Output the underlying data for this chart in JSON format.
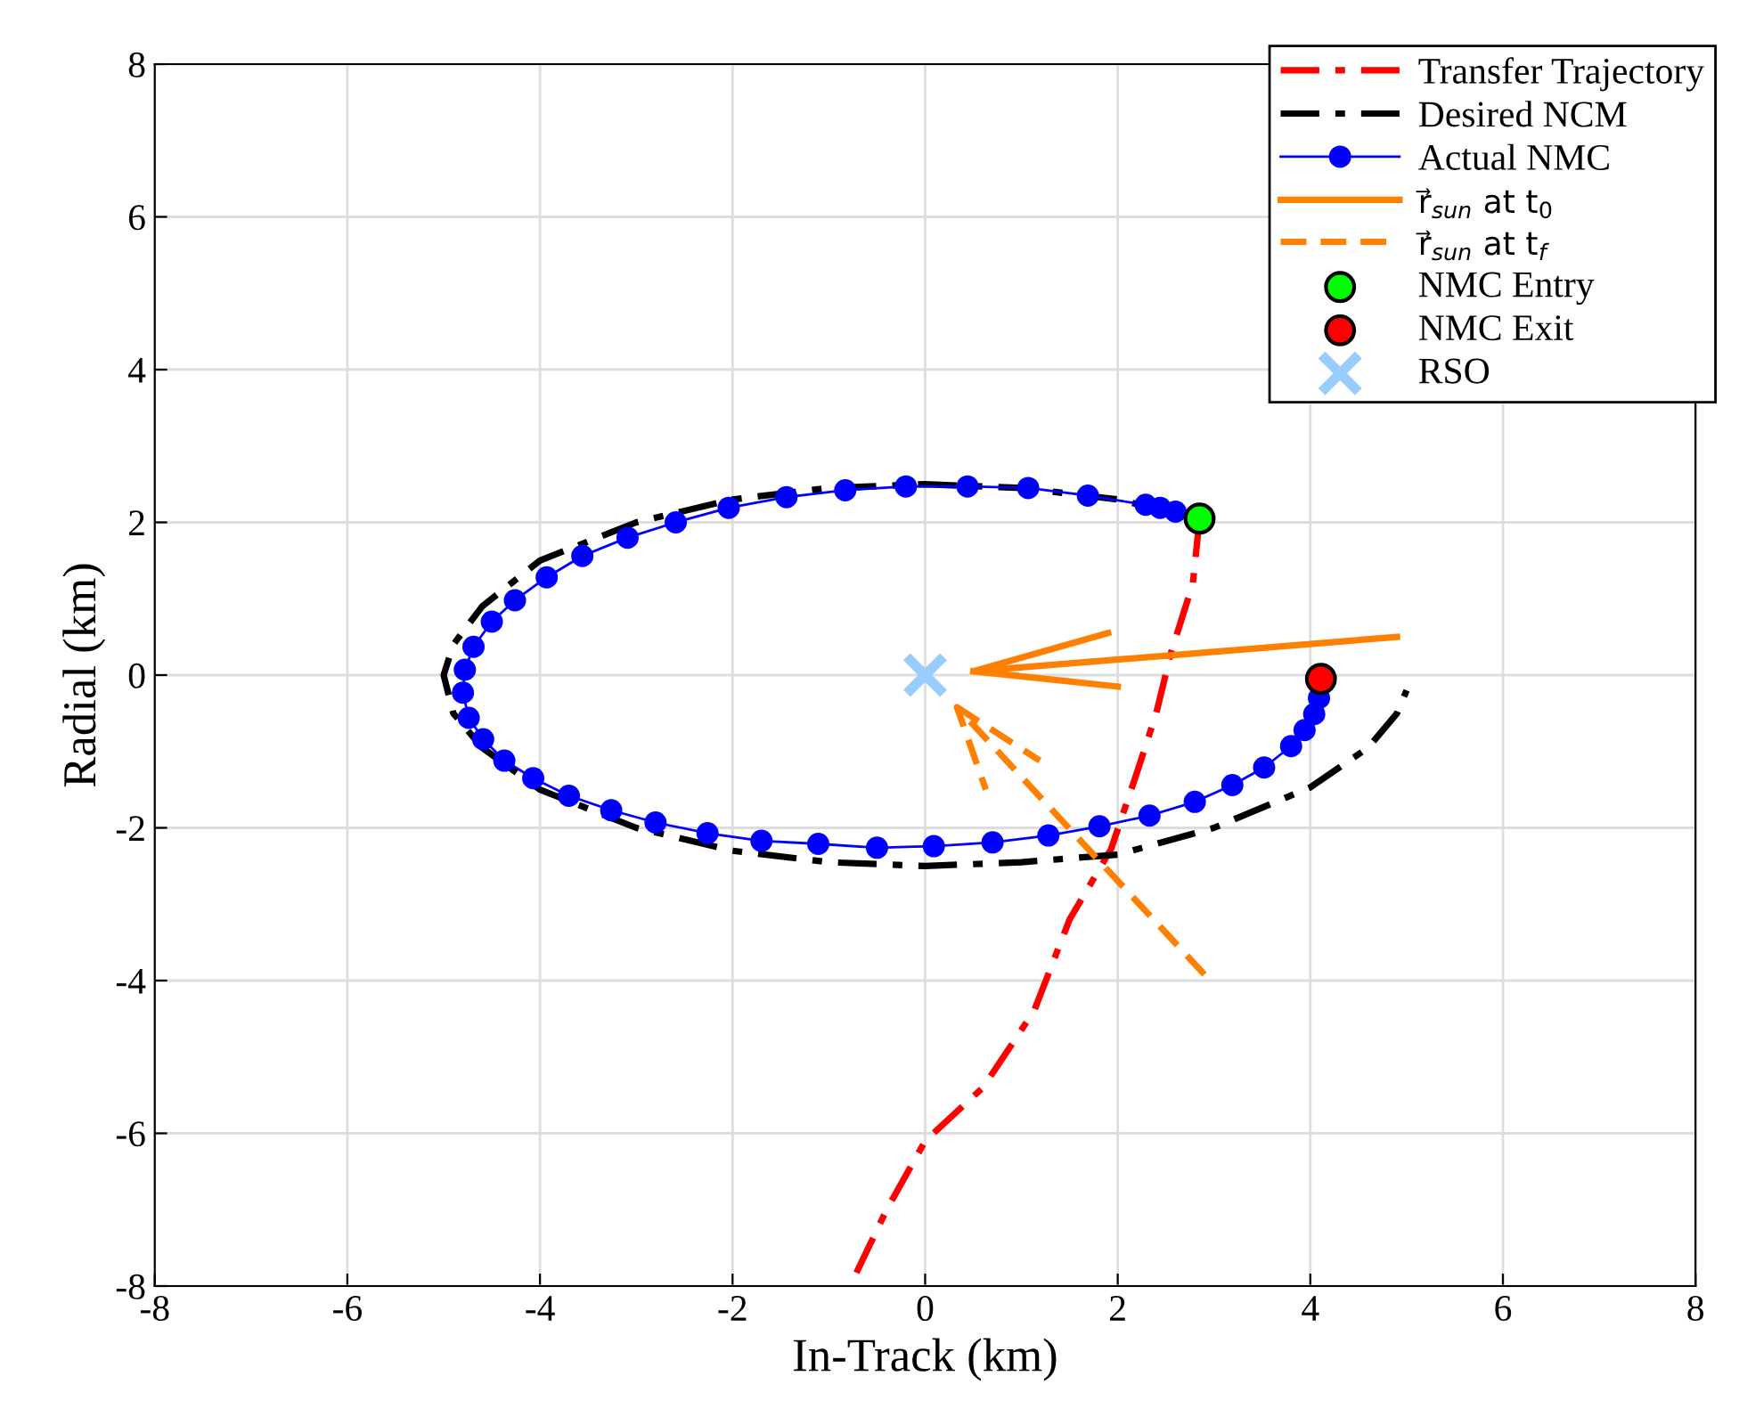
{
  "chart_data": {
    "type": "line",
    "xlabel": "In-Track (km)",
    "ylabel": "Radial (km)",
    "xlim": [
      -8,
      8
    ],
    "ylim": [
      -8,
      8
    ],
    "xticks": [
      -8,
      -6,
      -4,
      -2,
      0,
      2,
      4,
      6,
      8
    ],
    "yticks": [
      -8,
      -6,
      -4,
      -2,
      0,
      2,
      4,
      6,
      8
    ],
    "grid": true,
    "legend": "top right",
    "series": [
      {
        "name": "Transfer Trajectory",
        "color": "#ff0000",
        "line_style": "dashdot",
        "marker": "none",
        "x": [
          2.85,
          2.78,
          2.55,
          2.4,
          2.18,
          1.93,
          1.5,
          1.13,
          0.6,
          0.0,
          -0.4,
          -0.78
        ],
        "values": [
          2.05,
          1.2,
          0.28,
          -0.5,
          -1.35,
          -2.28,
          -3.2,
          -4.4,
          -5.4,
          -6.1,
          -7.0,
          -8.0
        ]
      },
      {
        "name": "Desired NCM",
        "color": "#000000",
        "line_style": "dashdot",
        "marker": "none",
        "x": [
          2.8,
          2.0,
          1.0,
          0.0,
          -1.0,
          -2.0,
          -3.0,
          -4.0,
          -4.6,
          -4.9,
          -5.0,
          -4.9,
          -4.6,
          -4.0,
          -3.0,
          -2.0,
          -1.0,
          0.0,
          1.0,
          2.0,
          3.0,
          4.0,
          4.6,
          4.9,
          5.0
        ],
        "values": [
          2.05,
          2.3,
          2.45,
          2.5,
          2.45,
          2.3,
          2.0,
          1.5,
          0.9,
          0.4,
          0.0,
          -0.5,
          -0.95,
          -1.5,
          -2.0,
          -2.3,
          -2.45,
          -2.5,
          -2.45,
          -2.35,
          -2.0,
          -1.47,
          -0.95,
          -0.5,
          -0.2
        ]
      },
      {
        "name": "Actual NMC",
        "color": "#0000ff",
        "line_style": "solid",
        "marker": "circle",
        "x": [
          2.85,
          2.6,
          2.44,
          2.29,
          1.69,
          1.07,
          0.44,
          -0.2,
          -0.83,
          -1.44,
          -2.04,
          -2.59,
          -3.09,
          -3.56,
          -3.93,
          -4.26,
          -4.5,
          -4.69,
          -4.78,
          -4.8,
          -4.74,
          -4.59,
          -4.37,
          -4.07,
          -3.7,
          -3.26,
          -2.8,
          -2.26,
          -1.7,
          -1.11,
          -0.5,
          0.09,
          0.7,
          1.28,
          1.81,
          2.33,
          2.8,
          3.19,
          3.52,
          3.8,
          3.94,
          4.04,
          4.09,
          4.11
        ],
        "values": [
          2.05,
          2.14,
          2.19,
          2.23,
          2.35,
          2.45,
          2.47,
          2.47,
          2.42,
          2.33,
          2.19,
          2.0,
          1.8,
          1.56,
          1.28,
          0.98,
          0.7,
          0.37,
          0.07,
          -0.23,
          -0.56,
          -0.84,
          -1.12,
          -1.35,
          -1.58,
          -1.77,
          -1.93,
          -2.07,
          -2.17,
          -2.21,
          -2.26,
          -2.24,
          -2.19,
          -2.1,
          -1.98,
          -1.84,
          -1.66,
          -1.44,
          -1.21,
          -0.93,
          -0.72,
          -0.51,
          -0.3,
          -0.05
        ]
      },
      {
        "name": "r⃗$_{sun}$ at t$_{0}$",
        "color": "#ff8000",
        "line_style": "solid",
        "marker": "none",
        "x": [
          4.9,
          0.5,
          1.9,
          null,
          0.5,
          2.0
        ],
        "values": [
          0.5,
          0.05,
          0.55,
          null,
          0.05,
          -0.15
        ]
      },
      {
        "name": "r⃗$_{sun}$ at t$_{f}$",
        "color": "#ff8000",
        "line_style": "dashed",
        "marker": "none",
        "x": [
          2.9,
          0.33,
          0.63,
          null,
          0.33,
          1.19
        ],
        "values": [
          -3.92,
          -0.42,
          -1.5,
          null,
          -0.42,
          -1.12
        ]
      },
      {
        "type": "scatter",
        "name": "NMC Entry",
        "color": "#00ff00",
        "marker": "circle",
        "x": [
          2.85
        ],
        "values": [
          2.05
        ]
      },
      {
        "type": "scatter",
        "name": "NMC Exit",
        "color": "#ff0000",
        "marker": "circle",
        "x": [
          4.11
        ],
        "values": [
          -0.05
        ]
      },
      {
        "type": "scatter",
        "name": "RSO",
        "color": "#99ccff",
        "marker": "cross",
        "x": [
          0.0
        ],
        "values": [
          0.0
        ]
      }
    ]
  }
}
